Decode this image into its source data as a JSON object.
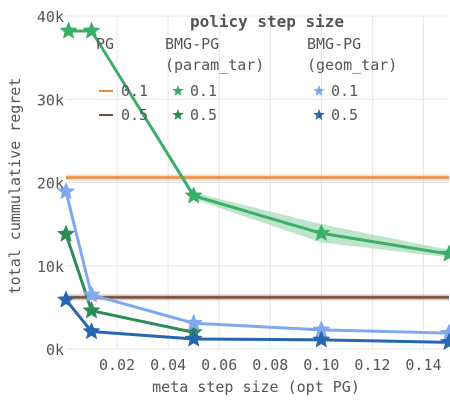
{
  "chart_data": {
    "type": "line",
    "xlabel": "meta step size (opt PG)",
    "ylabel": "total cummulative regret",
    "xlim": [
      0.0,
      0.15
    ],
    "ylim": [
      0,
      40000
    ],
    "x_ticks": [
      0.02,
      0.04,
      0.06,
      0.08,
      0.1,
      0.12,
      0.14
    ],
    "x_tick_labels": [
      "0.02",
      "0.04",
      "0.06",
      "0.08",
      "0.10",
      "0.12",
      "0.14"
    ],
    "y_ticks": [
      0,
      10000,
      20000,
      30000,
      40000
    ],
    "y_tick_labels": [
      "0k",
      "10k",
      "20k",
      "30k",
      "40k"
    ],
    "grid": true,
    "legend": {
      "title": "policy step size",
      "placement": "top-right",
      "column_headers": [
        "PG",
        "BMG-PG",
        "(param_tar)",
        "BMG-PG",
        "(geom_tar)"
      ]
    },
    "baselines": [
      {
        "name": "PG 0.1",
        "label": "0.1",
        "y": 20600,
        "color": "#f08a3c"
      },
      {
        "name": "PG 0.5",
        "label": "0.5",
        "y": 6200,
        "color": "#7a4a3a"
      }
    ],
    "series": [
      {
        "name": "BMG-PG (param_tar) 0.1",
        "label": "0.1",
        "color": "#3cae6b",
        "band": "#a8dcb7",
        "x": [
          0.001,
          0.01,
          0.05,
          0.1,
          0.15
        ],
        "y": [
          38200,
          38200,
          18400,
          13900,
          11400
        ],
        "lower": [
          38200,
          38200,
          18000,
          12800,
          11000
        ],
        "upper": [
          38200,
          38200,
          18800,
          15000,
          11900
        ]
      },
      {
        "name": "BMG-PG (param_tar) 0.5",
        "label": "0.5",
        "color": "#2e8b57",
        "x": [
          0.0,
          0.01,
          0.05
        ],
        "y": [
          13800,
          4600,
          2000
        ]
      },
      {
        "name": "BMG-PG (geom_tar) 0.1",
        "label": "0.1",
        "color": "#7fa8f0",
        "x": [
          0.0,
          0.01,
          0.05,
          0.1,
          0.15
        ],
        "y": [
          18900,
          6500,
          3100,
          2300,
          1900
        ]
      },
      {
        "name": "BMG-PG (geom_tar) 0.5",
        "label": "0.5",
        "color": "#2766b0",
        "x": [
          0.0,
          0.01,
          0.05,
          0.1,
          0.15
        ],
        "y": [
          5900,
          2100,
          1200,
          1100,
          800
        ]
      }
    ]
  }
}
